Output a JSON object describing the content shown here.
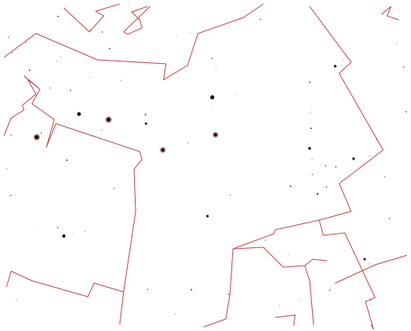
{
  "map": {
    "boundary_color": "#c0474f",
    "background_color": "#ffffff",
    "star_color": "#111111",
    "glow_color": "#a0522d",
    "boundary_count": 8,
    "bright_star_count": 13,
    "faint_star_count": 70
  }
}
